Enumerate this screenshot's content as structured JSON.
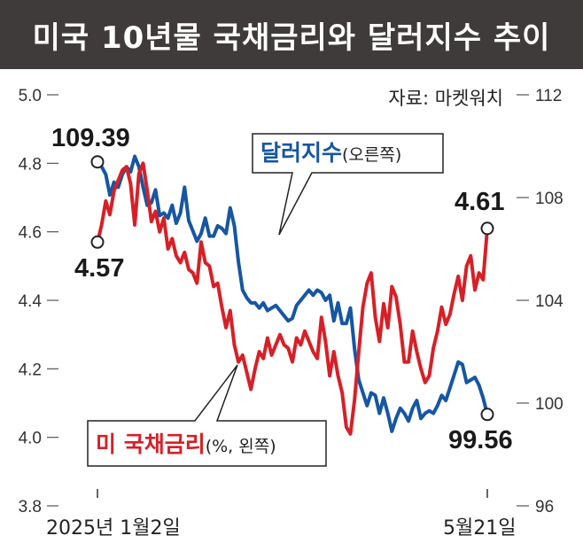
{
  "title": "미국 10년물 국채금리와 달러지수 추이",
  "source": "자료: 마켓워치",
  "colors": {
    "title_bg": "#3f3b3a",
    "dollar": "#1656a3",
    "yield": "#d62027"
  },
  "chart_data": {
    "type": "line",
    "title": "미국 10년물 국채금리와 달러지수 추이",
    "x": {
      "start_label": "2025년 1월2일",
      "end_label": "5월21일",
      "points": 95
    },
    "y_left": {
      "ticks": [
        "5.0",
        "4.8",
        "4.6",
        "4.4",
        "4.2",
        "4.0",
        "3.8"
      ],
      "range": [
        3.8,
        5.0
      ]
    },
    "y_right": {
      "ticks": [
        "112",
        "108",
        "104",
        "100",
        "96"
      ],
      "range": [
        96,
        112
      ]
    },
    "series": [
      {
        "name": "달러지수",
        "name_suffix": "(오른쪽)",
        "axis": "right",
        "color": "#1656a3",
        "start_label": "109.39",
        "end_label": "99.56",
        "values": [
          109.39,
          109.2,
          108.9,
          108.1,
          108.6,
          108.4,
          108.9,
          109.2,
          109.0,
          109.6,
          109.2,
          108.4,
          107.7,
          107.8,
          108.3,
          107.3,
          107.4,
          107.2,
          107.7,
          107.0,
          107.4,
          108.4,
          107.1,
          106.7,
          106.3,
          106.6,
          107.2,
          106.5,
          106.5,
          106.9,
          106.8,
          106.6,
          107.6,
          106.9,
          105.5,
          104.4,
          104.1,
          103.9,
          103.9,
          103.7,
          103.9,
          103.6,
          103.7,
          103.8,
          103.6,
          103.4,
          103.2,
          103.3,
          103.8,
          104.0,
          104.2,
          104.4,
          104.2,
          104.4,
          104.3,
          104.0,
          104.2,
          103.2,
          103.9,
          103.1,
          103.1,
          103.7,
          102.1,
          100.9,
          100.4,
          99.9,
          100.4,
          100.3,
          99.6,
          100.2,
          99.6,
          98.9,
          99.4,
          99.8,
          99.6,
          99.3,
          99.8,
          100.1,
          99.4,
          99.6,
          99.7,
          99.6,
          99.9,
          100.3,
          100.1,
          100.6,
          101.1,
          101.6,
          101.5,
          100.8,
          100.9,
          101.0,
          100.7,
          100.2,
          99.56
        ]
      },
      {
        "name": "미 국채금리",
        "name_suffix": "(%, 왼쪽)",
        "axis": "left",
        "color": "#d62027",
        "start_label": "4.57",
        "end_label": "4.61",
        "values": [
          4.57,
          4.62,
          4.69,
          4.65,
          4.72,
          4.75,
          4.78,
          4.79,
          4.74,
          4.62,
          4.77,
          4.8,
          4.72,
          4.63,
          4.66,
          4.6,
          4.64,
          4.55,
          4.58,
          4.53,
          4.51,
          4.54,
          4.49,
          4.48,
          4.45,
          4.57,
          4.51,
          4.5,
          4.44,
          4.45,
          4.38,
          4.32,
          4.37,
          4.27,
          4.22,
          4.24,
          4.19,
          4.14,
          4.2,
          4.25,
          4.23,
          4.29,
          4.24,
          4.27,
          4.3,
          4.27,
          4.26,
          4.22,
          4.29,
          4.27,
          4.31,
          4.28,
          4.25,
          4.23,
          4.35,
          4.28,
          4.18,
          4.25,
          4.18,
          4.13,
          4.03,
          4.01,
          4.11,
          4.25,
          4.38,
          4.45,
          4.48,
          4.35,
          4.28,
          4.39,
          4.32,
          4.44,
          4.41,
          4.33,
          4.22,
          4.22,
          4.31,
          4.25,
          4.2,
          4.16,
          4.18,
          4.26,
          4.31,
          4.38,
          4.33,
          4.36,
          4.42,
          4.47,
          4.4,
          4.5,
          4.53,
          4.43,
          4.48,
          4.46,
          4.61
        ]
      }
    ]
  }
}
